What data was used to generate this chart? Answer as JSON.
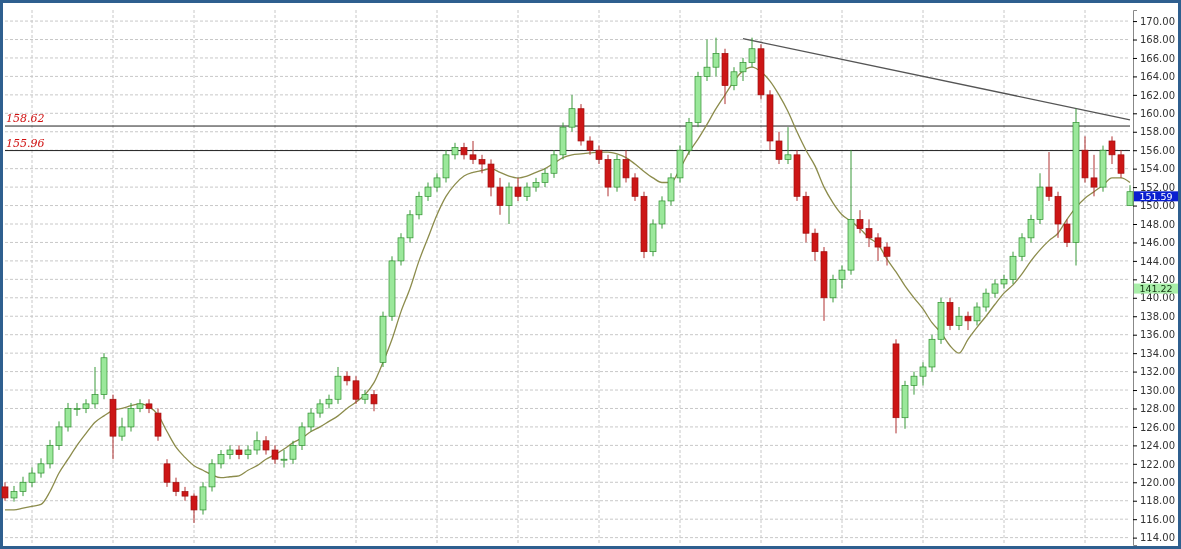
{
  "chart_data": {
    "type": "candlestick",
    "categories": [
      null,
      null,
      null,
      null,
      null,
      null,
      null,
      null,
      null,
      null,
      null,
      null,
      null,
      null,
      null,
      null,
      null,
      null,
      null,
      null,
      null,
      null,
      null,
      null,
      null,
      null,
      null,
      null,
      null,
      null,
      null,
      null,
      null,
      null,
      null,
      null,
      null,
      null,
      null,
      null,
      null,
      null,
      null,
      null,
      null,
      null,
      null,
      null,
      null,
      null,
      null,
      null,
      null,
      null,
      null,
      null,
      null,
      null,
      null,
      null,
      null,
      null,
      null,
      null,
      null,
      null,
      null,
      null,
      null,
      null,
      null,
      null,
      null,
      null,
      null,
      null,
      null,
      null,
      null,
      null,
      null,
      null,
      null,
      null,
      null,
      null,
      null,
      null,
      null,
      null,
      null,
      null,
      null,
      null,
      null,
      null,
      null,
      null,
      null,
      null,
      null,
      null,
      null,
      null,
      null,
      null,
      null,
      null,
      null,
      null,
      null,
      null,
      null,
      null,
      null,
      null,
      null,
      null,
      null,
      null,
      null,
      null,
      null,
      null,
      null,
      null
    ],
    "ohlc": [
      [
        119.5,
        120,
        118,
        118.3
      ],
      [
        118.3,
        119.6,
        117.9,
        119
      ],
      [
        119,
        120.6,
        118.5,
        120
      ],
      [
        120,
        121.6,
        119.5,
        121
      ],
      [
        121,
        122.6,
        120.5,
        122
      ],
      [
        122,
        124.6,
        121.5,
        124
      ],
      [
        124,
        126.6,
        123.5,
        126
      ],
      [
        126,
        128.6,
        125.5,
        128
      ],
      [
        128,
        128.6,
        127.2,
        128
      ],
      [
        128,
        129,
        127.5,
        128.5
      ],
      [
        128.5,
        132.5,
        128,
        129.5
      ],
      [
        129.5,
        134,
        129,
        133.5
      ],
      [
        129,
        129.5,
        122.5,
        125
      ],
      [
        125,
        127,
        124.5,
        126
      ],
      [
        126,
        128.6,
        125.5,
        128
      ],
      [
        128,
        129,
        127.6,
        128.5
      ],
      [
        128.5,
        129,
        127.5,
        128
      ],
      [
        127.5,
        128,
        124.5,
        125
      ],
      [
        122,
        122.5,
        119.5,
        120
      ],
      [
        120,
        120.5,
        118.5,
        119
      ],
      [
        119,
        119.5,
        118,
        118.5
      ],
      [
        118.5,
        118.8,
        115.6,
        117
      ],
      [
        117,
        120,
        116.5,
        119.5
      ],
      [
        119.5,
        122.5,
        119,
        122
      ],
      [
        122,
        123.5,
        121.5,
        123
      ],
      [
        123,
        124,
        122.5,
        123.5
      ],
      [
        123.5,
        124,
        122.5,
        123
      ],
      [
        123,
        124,
        122.5,
        123.5
      ],
      [
        123.5,
        125.5,
        123,
        124.5
      ],
      [
        124.5,
        125,
        123,
        123.5
      ],
      [
        123.5,
        124,
        122,
        122.5
      ],
      [
        122.5,
        123.5,
        121.6,
        122.5
      ],
      [
        122.5,
        124.5,
        122,
        124
      ],
      [
        124,
        126.5,
        123.5,
        126
      ],
      [
        126,
        128,
        125.5,
        127.5
      ],
      [
        127.5,
        129,
        127,
        128.5
      ],
      [
        128.5,
        129.5,
        128,
        129
      ],
      [
        129,
        132.5,
        128.5,
        131.5
      ],
      [
        131.5,
        132,
        130.5,
        131
      ],
      [
        131,
        131.5,
        128.5,
        129
      ],
      [
        129,
        130,
        128.5,
        129.5
      ],
      [
        129.5,
        130,
        127.7,
        128.5
      ],
      [
        133,
        138.5,
        132.5,
        138
      ],
      [
        138,
        144.5,
        137.5,
        144
      ],
      [
        144,
        147,
        143.5,
        146.5
      ],
      [
        146.5,
        149.5,
        146,
        149
      ],
      [
        149,
        151.5,
        148.5,
        151
      ],
      [
        151,
        152.5,
        150.5,
        152
      ],
      [
        152,
        153.5,
        151.5,
        153
      ],
      [
        153,
        156,
        152.5,
        155.5
      ],
      [
        155.5,
        156.8,
        155,
        156.3
      ],
      [
        156.3,
        156.8,
        155,
        155.5
      ],
      [
        155.5,
        157,
        154.5,
        155
      ],
      [
        155,
        155.5,
        153.5,
        154.5
      ],
      [
        154.5,
        155,
        151,
        152
      ],
      [
        152,
        153,
        149,
        150
      ],
      [
        150,
        152.5,
        148,
        152
      ],
      [
        152,
        153,
        150.5,
        151
      ],
      [
        151,
        152.5,
        150.5,
        152
      ],
      [
        152,
        153,
        151.5,
        152.5
      ],
      [
        152.5,
        154,
        152,
        153.5
      ],
      [
        153.5,
        156,
        153,
        155.5
      ],
      [
        155.5,
        159,
        155,
        158.5
      ],
      [
        158.5,
        162,
        158,
        160.5
      ],
      [
        160.5,
        161,
        156.5,
        157
      ],
      [
        157,
        157.5,
        155.5,
        156
      ],
      [
        156,
        156.5,
        154.5,
        155
      ],
      [
        155,
        155.5,
        151,
        152
      ],
      [
        152,
        155.5,
        151.5,
        155
      ],
      [
        155,
        156,
        152.5,
        153
      ],
      [
        153,
        153.5,
        150.5,
        151
      ],
      [
        151,
        151.5,
        144.3,
        145
      ],
      [
        145,
        148.5,
        144.5,
        148
      ],
      [
        148,
        151,
        147.5,
        150.5
      ],
      [
        150.5,
        153.5,
        150,
        153
      ],
      [
        153,
        156.5,
        152.5,
        156
      ],
      [
        156,
        159.5,
        155.5,
        159
      ],
      [
        159,
        164.5,
        158.5,
        164
      ],
      [
        164,
        168,
        163.5,
        165
      ],
      [
        165,
        168.2,
        164,
        166.5
      ],
      [
        166.5,
        167,
        161,
        163
      ],
      [
        163,
        165,
        162.5,
        164.5
      ],
      [
        164.5,
        166,
        163.5,
        165.5
      ],
      [
        165.5,
        168.2,
        165,
        167
      ],
      [
        167,
        167.5,
        161.5,
        162
      ],
      [
        162,
        162.5,
        156,
        157
      ],
      [
        157,
        158,
        154.5,
        155
      ],
      [
        155,
        158.5,
        154.5,
        155.5
      ],
      [
        155.5,
        156,
        150.5,
        151
      ],
      [
        151,
        151.5,
        146,
        147
      ],
      [
        147,
        147.5,
        144,
        145
      ],
      [
        145,
        145.5,
        137.5,
        140
      ],
      [
        140,
        142.5,
        139.5,
        142
      ],
      [
        142,
        143.5,
        141,
        143
      ],
      [
        143,
        156,
        142.5,
        148.5
      ],
      [
        148.5,
        149.5,
        147,
        147.5
      ],
      [
        147.5,
        148.5,
        145.5,
        146.5
      ],
      [
        146.5,
        147,
        144,
        145.5
      ],
      [
        145.5,
        146,
        143.5,
        144.5
      ],
      [
        135,
        135.5,
        125.3,
        127
      ],
      [
        127,
        131,
        125.8,
        130.5
      ],
      [
        130.5,
        132,
        129.5,
        131.5
      ],
      [
        131.5,
        133,
        130.5,
        132.5
      ],
      [
        132.5,
        136,
        132,
        135.5
      ],
      [
        135.5,
        140,
        135,
        139.5
      ],
      [
        139.5,
        140,
        136.5,
        137
      ],
      [
        137,
        139,
        136.5,
        138
      ],
      [
        138,
        138.5,
        136.5,
        137.5
      ],
      [
        137.5,
        139.5,
        137,
        139
      ],
      [
        139,
        141,
        138.5,
        140.5
      ],
      [
        140.5,
        142,
        140,
        141.5
      ],
      [
        141.5,
        142.5,
        141,
        142
      ],
      [
        142,
        145,
        141.5,
        144.5
      ],
      [
        144.5,
        147,
        144,
        146.5
      ],
      [
        146.5,
        149,
        146,
        148.5
      ],
      [
        148.5,
        153.5,
        148,
        152
      ],
      [
        152,
        155.8,
        150.5,
        151
      ],
      [
        151,
        151.5,
        146.5,
        148
      ],
      [
        148,
        148.5,
        145.5,
        146
      ],
      [
        146,
        160.5,
        143.5,
        159
      ],
      [
        156,
        157.5,
        152.5,
        153
      ],
      [
        153,
        155.5,
        151,
        152
      ],
      [
        152,
        156.5,
        151.5,
        156
      ],
      [
        157,
        157.5,
        154.5,
        155.5
      ],
      [
        155.5,
        156,
        153,
        153.5
      ],
      [
        150,
        152.2,
        150,
        151.5
      ]
    ],
    "series": [
      {
        "type": "line",
        "color": "#8c8c4c",
        "values": [
          117,
          117,
          117.2,
          117.4,
          117.6,
          119,
          121,
          122.5,
          124,
          125.3,
          126.5,
          127.2,
          127.8,
          128,
          128.3,
          128.5,
          128.2,
          127.3,
          125.5,
          123.8,
          122.7,
          121.8,
          121.3,
          120.8,
          120.5,
          120.6,
          120.7,
          121.3,
          121.8,
          122.5,
          123,
          123.6,
          124.3,
          124.8,
          125.5,
          126,
          126.6,
          127.2,
          128,
          128.7,
          129.5,
          130.8,
          133,
          135.5,
          138.5,
          141,
          144,
          146.5,
          149,
          151,
          152.3,
          153.2,
          153.6,
          153.8,
          154,
          153.6,
          153.2,
          153,
          153.2,
          153.6,
          154,
          154.6,
          155.2,
          155.5,
          155.6,
          155.7,
          155.8,
          155.8,
          155.6,
          155.2,
          154.5,
          153.7,
          153,
          152.5,
          152.5,
          154,
          155.8,
          157.2,
          158.8,
          160.5,
          162,
          163.5,
          164.6,
          165,
          164.5,
          163.5,
          162,
          160.2,
          158,
          156,
          154.3,
          152,
          150.3,
          149,
          148.3,
          147.5,
          146.5,
          145.8,
          144.2,
          142.8,
          141.3,
          140,
          138.8,
          137.3,
          136.2,
          134.8,
          134,
          135.5,
          136.8,
          138,
          139.3,
          140.5,
          141.4,
          142.6,
          144,
          145.2,
          146.2,
          147,
          148.5,
          149.8,
          150.8,
          151.5,
          152.2,
          153,
          153,
          152.5
        ]
      },
      {
        "type": "line",
        "color": "#555555",
        "values": [
          null,
          null,
          null,
          null,
          null,
          null,
          null,
          null,
          null,
          null,
          null,
          null,
          null,
          null,
          null,
          null,
          null,
          null,
          null,
          null,
          null,
          null,
          null,
          null,
          null,
          null,
          null,
          null,
          null,
          null,
          null,
          null,
          null,
          null,
          null,
          null,
          null,
          null,
          null,
          null,
          null,
          null,
          null,
          null,
          null,
          null,
          null,
          null,
          null,
          null,
          null,
          null,
          null,
          null,
          null,
          null,
          null,
          null,
          null,
          null,
          null,
          null,
          null,
          null,
          null,
          null,
          null,
          null,
          null,
          null,
          null,
          null,
          null,
          null,
          null,
          null,
          null,
          null,
          null,
          null,
          null,
          null,
          168.1,
          null,
          null,
          null,
          null,
          null,
          null,
          null,
          null,
          null,
          null,
          null,
          null,
          null,
          null,
          null,
          null,
          null,
          null,
          null,
          null,
          null,
          null,
          null,
          null,
          null,
          null,
          null,
          null,
          null,
          null,
          null,
          null,
          null,
          null,
          null,
          null,
          null,
          null,
          null,
          null,
          null,
          null,
          159.3
        ]
      }
    ],
    "ylim": [
      113.2,
      171.2
    ],
    "yticks": [
      {
        "value": 114,
        "label": "114.00"
      },
      {
        "value": 116,
        "label": "116.00"
      },
      {
        "value": 118,
        "label": "118.00"
      },
      {
        "value": 120,
        "label": "120.00"
      },
      {
        "value": 122,
        "label": "122.00"
      },
      {
        "value": 124,
        "label": "124.00"
      },
      {
        "value": 126,
        "label": "126.00"
      },
      {
        "value": 128,
        "label": "128.00"
      },
      {
        "value": 130,
        "label": "130.00"
      },
      {
        "value": 132,
        "label": "132.00"
      },
      {
        "value": 134,
        "label": "134.00"
      },
      {
        "value": 136,
        "label": "136.00"
      },
      {
        "value": 138,
        "label": "138.00"
      },
      {
        "value": 140,
        "label": "140.00"
      },
      {
        "value": 142,
        "label": "142.00"
      },
      {
        "value": 144,
        "label": "144.00"
      },
      {
        "value": 146,
        "label": "146.00"
      },
      {
        "value": 148,
        "label": "148.00"
      },
      {
        "value": 150,
        "label": "150.00"
      },
      {
        "value": 152,
        "label": "152.00"
      },
      {
        "value": 154,
        "label": "154.00"
      },
      {
        "value": 156,
        "label": "156.00"
      },
      {
        "value": 158,
        "label": "158.00"
      },
      {
        "value": 160,
        "label": "160.00"
      },
      {
        "value": 162,
        "label": "162.00"
      },
      {
        "value": 164,
        "label": "164.00"
      },
      {
        "value": 166,
        "label": "166.00"
      },
      {
        "value": 168,
        "label": "168.00"
      },
      {
        "value": 170,
        "label": "170.00"
      }
    ],
    "grid": true,
    "ref_lines": [
      {
        "axis": "y",
        "value": 158.62,
        "label": "158.62",
        "color": "#222222"
      },
      {
        "axis": "y",
        "value": 155.96,
        "label": "155.96",
        "color": "#222222"
      }
    ],
    "annotations": [
      "151.59",
      "141.22"
    ]
  }
}
